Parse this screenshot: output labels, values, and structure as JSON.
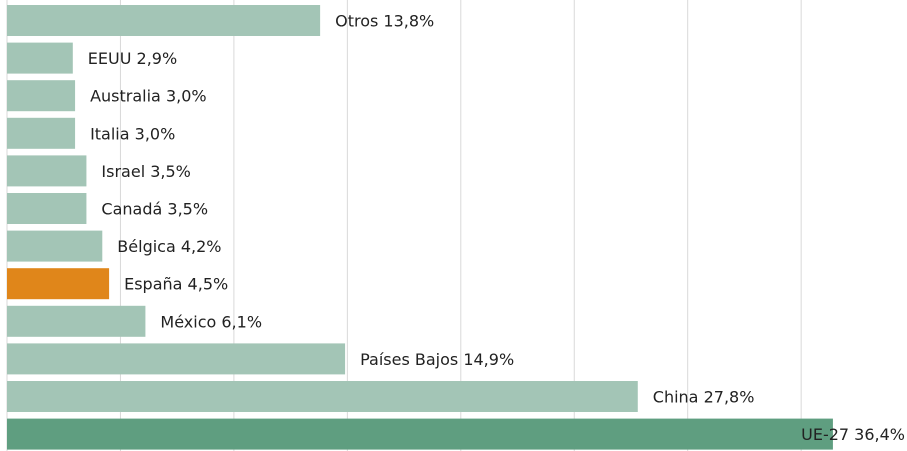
{
  "chart_data": {
    "type": "bar",
    "orientation": "horizontal",
    "categories": [
      "Otros",
      "EEUU",
      "Australia",
      "Italia",
      "Israel",
      "Canadá",
      "Bélgica",
      "España",
      "México",
      "Países Bajos",
      "China",
      "UE-27"
    ],
    "values": [
      13.8,
      2.9,
      3.0,
      3.0,
      3.5,
      3.5,
      4.2,
      4.5,
      6.1,
      14.9,
      27.8,
      36.4
    ],
    "value_labels": [
      "13,8%",
      "2,9%",
      "3,0%",
      "3,0%",
      "3,5%",
      "3,5%",
      "4,2%",
      "4,5%",
      "6,1%",
      "14,9%",
      "27,8%",
      "36,4%"
    ],
    "colors": [
      "#a3c5b6",
      "#a3c5b6",
      "#a3c5b6",
      "#a3c5b6",
      "#a3c5b6",
      "#a3c5b6",
      "#a3c5b6",
      "#e0861a",
      "#a3c5b6",
      "#a3c5b6",
      "#a3c5b6",
      "#5f9e80"
    ],
    "xlim": [
      0,
      40
    ],
    "xticks": [
      0,
      5,
      10,
      15,
      20,
      25,
      30,
      35
    ],
    "grid": true
  }
}
